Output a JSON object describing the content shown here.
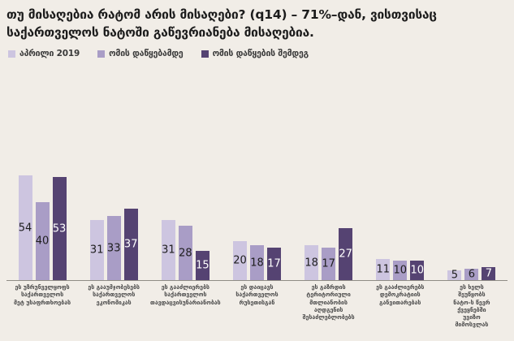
{
  "title": "თუ მისაღებია რატომ არის მისაღები? (q14) – 71%–დან, ვისთვისაც\nსაქართველოს ნატოში გაწევრიანება მისაღებია.",
  "colors": {
    "background": "#f1ede7",
    "axis_line": "#8f8c85",
    "value_label_on_light": "#1d1d1d",
    "value_label_on_dark": "#ffffff"
  },
  "legend": {
    "position": "top",
    "items": [
      {
        "label": "აპრილი 2019",
        "color": "#cdc5e0"
      },
      {
        "label": "ომის დაწყებამდე",
        "color": "#a99dc6"
      },
      {
        "label": "ომის დაწყების შემდეგ",
        "color": "#554372"
      }
    ]
  },
  "chart_data": {
    "type": "bar",
    "title": "თუ მისაღებია რატომ არის მისაღები? (q14) – 71%–დან, ვისთვისაც საქართველოს ნატოში გაწევრიანება მისაღებია.",
    "categories": [
      "ეს უზრუნველყოფს\nსაქართველოს\nმეტ უსაფრთხოებას",
      "ეს გააუმჯობესებს\nსაქართველოს\nეკონომიკას",
      "ეს გააძლიერებს\nსაქართველოს\nთავდაცვისუნარიანობას",
      "ეს დაიცავს\nსაქართველოს\nრუსეთისგან",
      "ეს გაზრდის\nტერიტორიული\nმთლიანობის\nაღდგენის\nშესაძლებლობებს",
      "ეს გააძლიერებს\nდემოკრატიის\nგანვითარებას",
      "ეს ხელს\nშეუწყობს\nნატო-ს წევრ\nქვეყნებში\nუვიზო\nმიმოსვლას"
    ],
    "series": [
      {
        "name": "აპრილი 2019",
        "color": "#cdc5e0",
        "text_color": "#1d1d1d",
        "values": [
          54,
          31,
          31,
          20,
          18,
          11,
          5
        ]
      },
      {
        "name": "ომის დაწყებამდე",
        "color": "#a99dc6",
        "text_color": "#1d1d1d",
        "values": [
          40,
          33,
          28,
          18,
          17,
          10,
          6
        ]
      },
      {
        "name": "ომის დაწყების შემდეგ",
        "color": "#554372",
        "text_color": "#ffffff",
        "values": [
          53,
          37,
          15,
          17,
          27,
          10,
          7
        ]
      }
    ],
    "ylim": [
      0,
      60
    ],
    "xlabel": "",
    "ylabel": "",
    "grid": false,
    "value_labels": "inside-center",
    "legend_position": "top"
  }
}
